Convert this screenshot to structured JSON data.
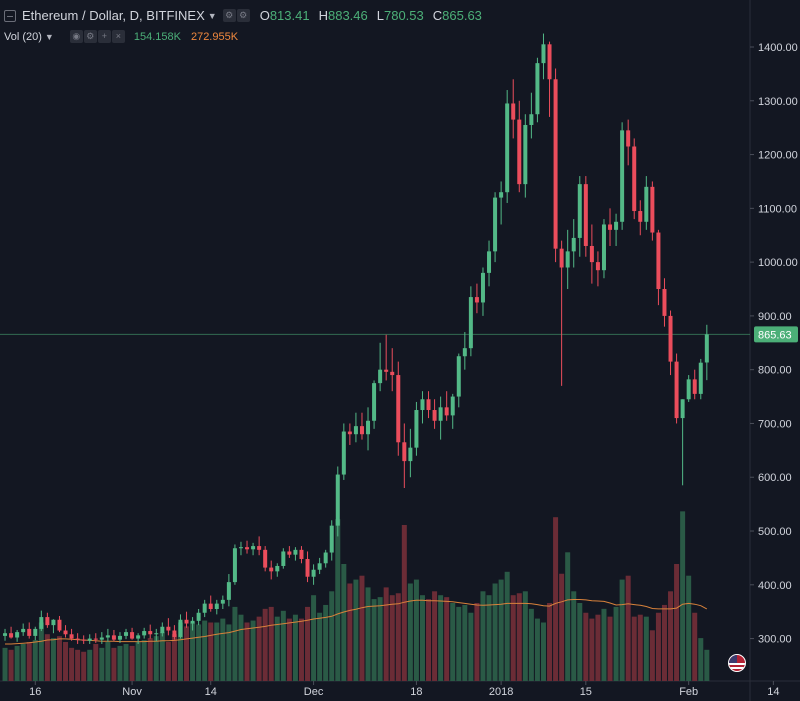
{
  "header": {
    "symbol": "Ethereum / Dollar, D, BITFINEX",
    "open_label": "O",
    "open": "813.41",
    "high_label": "H",
    "high": "883.46",
    "low_label": "L",
    "low": "780.53",
    "close_label": "C",
    "close": "865.63",
    "volume_label": "Vol (20)",
    "volume_value": "154.158K",
    "volume_ma": "272.955K"
  },
  "colors": {
    "background": "#131722",
    "up": "#53b987",
    "down": "#eb4d5c",
    "volume_up": "#2a5a46",
    "volume_down": "#6b2c36",
    "volume_ma": "#d9823b",
    "last_price_line": "#4caf78",
    "axis_text": "#d1d4dc",
    "grid": "#1f2430"
  },
  "icons": [
    "minimize-icon",
    "dropdown-caret-icon",
    "settings-icon",
    "eye-icon",
    "add-icon",
    "close-icon",
    "us-flag-icon"
  ],
  "chart_data": {
    "type": "candlestick",
    "title": "Ethereum / Dollar, D, BITFINEX",
    "ylim": [
      250,
      1440
    ],
    "y_ticks": [
      300,
      400,
      500,
      600,
      700,
      800,
      900,
      1000,
      1100,
      1200,
      1300,
      1400
    ],
    "x_labels": [
      {
        "label": "16",
        "index": 5
      },
      {
        "label": "Nov",
        "index": 21
      },
      {
        "label": "14",
        "index": 34
      },
      {
        "label": "Dec",
        "index": 51
      },
      {
        "label": "18",
        "index": 68
      },
      {
        "label": "2018",
        "index": 82
      },
      {
        "label": "15",
        "index": 96
      },
      {
        "label": "Feb",
        "index": 113
      },
      {
        "label": "14",
        "index": 127
      }
    ],
    "last_price": 865.63,
    "grid": false,
    "volume": {
      "label": "Vol (20)",
      "ma_period": 20
    },
    "candles": [
      {
        "o": 305,
        "h": 318,
        "l": 296,
        "c": 310
      },
      {
        "o": 310,
        "h": 322,
        "l": 300,
        "c": 302
      },
      {
        "o": 302,
        "h": 316,
        "l": 294,
        "c": 312
      },
      {
        "o": 312,
        "h": 328,
        "l": 305,
        "c": 318
      },
      {
        "o": 318,
        "h": 330,
        "l": 300,
        "c": 305
      },
      {
        "o": 305,
        "h": 322,
        "l": 297,
        "c": 318
      },
      {
        "o": 318,
        "h": 352,
        "l": 314,
        "c": 340
      },
      {
        "o": 340,
        "h": 348,
        "l": 320,
        "c": 325
      },
      {
        "o": 325,
        "h": 336,
        "l": 310,
        "c": 335
      },
      {
        "o": 335,
        "h": 342,
        "l": 312,
        "c": 315
      },
      {
        "o": 315,
        "h": 325,
        "l": 302,
        "c": 308
      },
      {
        "o": 308,
        "h": 318,
        "l": 296,
        "c": 300
      },
      {
        "o": 300,
        "h": 310,
        "l": 290,
        "c": 298
      },
      {
        "o": 298,
        "h": 306,
        "l": 290,
        "c": 296
      },
      {
        "o": 296,
        "h": 308,
        "l": 290,
        "c": 300
      },
      {
        "o": 300,
        "h": 310,
        "l": 292,
        "c": 298
      },
      {
        "o": 298,
        "h": 312,
        "l": 290,
        "c": 302
      },
      {
        "o": 302,
        "h": 318,
        "l": 294,
        "c": 306
      },
      {
        "o": 306,
        "h": 316,
        "l": 295,
        "c": 298
      },
      {
        "o": 298,
        "h": 312,
        "l": 292,
        "c": 305
      },
      {
        "o": 305,
        "h": 318,
        "l": 299,
        "c": 312
      },
      {
        "o": 312,
        "h": 320,
        "l": 298,
        "c": 300
      },
      {
        "o": 300,
        "h": 310,
        "l": 290,
        "c": 306
      },
      {
        "o": 306,
        "h": 320,
        "l": 300,
        "c": 314
      },
      {
        "o": 314,
        "h": 326,
        "l": 300,
        "c": 308
      },
      {
        "o": 308,
        "h": 318,
        "l": 295,
        "c": 310
      },
      {
        "o": 310,
        "h": 330,
        "l": 304,
        "c": 322
      },
      {
        "o": 322,
        "h": 338,
        "l": 306,
        "c": 315
      },
      {
        "o": 315,
        "h": 325,
        "l": 298,
        "c": 303
      },
      {
        "o": 303,
        "h": 345,
        "l": 300,
        "c": 335
      },
      {
        "o": 335,
        "h": 350,
        "l": 320,
        "c": 328
      },
      {
        "o": 328,
        "h": 340,
        "l": 315,
        "c": 333
      },
      {
        "o": 333,
        "h": 355,
        "l": 325,
        "c": 348
      },
      {
        "o": 348,
        "h": 372,
        "l": 340,
        "c": 365
      },
      {
        "o": 365,
        "h": 380,
        "l": 350,
        "c": 355
      },
      {
        "o": 355,
        "h": 372,
        "l": 345,
        "c": 365
      },
      {
        "o": 365,
        "h": 380,
        "l": 355,
        "c": 372
      },
      {
        "o": 372,
        "h": 420,
        "l": 360,
        "c": 405
      },
      {
        "o": 405,
        "h": 475,
        "l": 400,
        "c": 468
      },
      {
        "o": 468,
        "h": 480,
        "l": 455,
        "c": 470
      },
      {
        "o": 470,
        "h": 482,
        "l": 458,
        "c": 466
      },
      {
        "o": 466,
        "h": 478,
        "l": 455,
        "c": 472
      },
      {
        "o": 472,
        "h": 490,
        "l": 455,
        "c": 465
      },
      {
        "o": 465,
        "h": 472,
        "l": 425,
        "c": 432
      },
      {
        "o": 432,
        "h": 445,
        "l": 410,
        "c": 425
      },
      {
        "o": 425,
        "h": 440,
        "l": 415,
        "c": 435
      },
      {
        "o": 435,
        "h": 468,
        "l": 430,
        "c": 462
      },
      {
        "o": 462,
        "h": 472,
        "l": 450,
        "c": 456
      },
      {
        "o": 456,
        "h": 470,
        "l": 445,
        "c": 465
      },
      {
        "o": 465,
        "h": 472,
        "l": 440,
        "c": 448
      },
      {
        "o": 448,
        "h": 462,
        "l": 405,
        "c": 415
      },
      {
        "o": 415,
        "h": 438,
        "l": 400,
        "c": 428
      },
      {
        "o": 428,
        "h": 450,
        "l": 420,
        "c": 440
      },
      {
        "o": 440,
        "h": 465,
        "l": 432,
        "c": 460
      },
      {
        "o": 460,
        "h": 520,
        "l": 445,
        "c": 510
      },
      {
        "o": 510,
        "h": 620,
        "l": 490,
        "c": 605
      },
      {
        "o": 605,
        "h": 700,
        "l": 595,
        "c": 685
      },
      {
        "o": 685,
        "h": 700,
        "l": 660,
        "c": 680
      },
      {
        "o": 680,
        "h": 720,
        "l": 665,
        "c": 695
      },
      {
        "o": 695,
        "h": 720,
        "l": 670,
        "c": 680
      },
      {
        "o": 680,
        "h": 730,
        "l": 650,
        "c": 705
      },
      {
        "o": 705,
        "h": 780,
        "l": 690,
        "c": 775
      },
      {
        "o": 775,
        "h": 850,
        "l": 760,
        "c": 800
      },
      {
        "o": 800,
        "h": 865,
        "l": 780,
        "c": 796
      },
      {
        "o": 796,
        "h": 840,
        "l": 760,
        "c": 790
      },
      {
        "o": 790,
        "h": 815,
        "l": 640,
        "c": 665
      },
      {
        "o": 665,
        "h": 700,
        "l": 580,
        "c": 630
      },
      {
        "o": 630,
        "h": 690,
        "l": 600,
        "c": 655
      },
      {
        "o": 655,
        "h": 740,
        "l": 640,
        "c": 725
      },
      {
        "o": 725,
        "h": 760,
        "l": 700,
        "c": 745
      },
      {
        "o": 745,
        "h": 760,
        "l": 710,
        "c": 725
      },
      {
        "o": 725,
        "h": 745,
        "l": 690,
        "c": 705
      },
      {
        "o": 705,
        "h": 750,
        "l": 670,
        "c": 730
      },
      {
        "o": 730,
        "h": 760,
        "l": 705,
        "c": 715
      },
      {
        "o": 715,
        "h": 755,
        "l": 690,
        "c": 750
      },
      {
        "o": 750,
        "h": 830,
        "l": 730,
        "c": 825
      },
      {
        "o": 825,
        "h": 870,
        "l": 800,
        "c": 840
      },
      {
        "o": 840,
        "h": 955,
        "l": 825,
        "c": 935
      },
      {
        "o": 935,
        "h": 960,
        "l": 905,
        "c": 925
      },
      {
        "o": 925,
        "h": 990,
        "l": 900,
        "c": 980
      },
      {
        "o": 980,
        "h": 1040,
        "l": 955,
        "c": 1020
      },
      {
        "o": 1020,
        "h": 1130,
        "l": 1000,
        "c": 1120
      },
      {
        "o": 1120,
        "h": 1150,
        "l": 1070,
        "c": 1130
      },
      {
        "o": 1130,
        "h": 1320,
        "l": 1110,
        "c": 1295
      },
      {
        "o": 1295,
        "h": 1340,
        "l": 1230,
        "c": 1265
      },
      {
        "o": 1265,
        "h": 1300,
        "l": 1130,
        "c": 1145
      },
      {
        "o": 1145,
        "h": 1275,
        "l": 1120,
        "c": 1255
      },
      {
        "o": 1255,
        "h": 1315,
        "l": 1230,
        "c": 1275
      },
      {
        "o": 1275,
        "h": 1380,
        "l": 1260,
        "c": 1370
      },
      {
        "o": 1370,
        "h": 1425,
        "l": 1340,
        "c": 1405
      },
      {
        "o": 1405,
        "h": 1410,
        "l": 1270,
        "c": 1340
      },
      {
        "o": 1340,
        "h": 1360,
        "l": 1000,
        "c": 1025
      },
      {
        "o": 1025,
        "h": 1040,
        "l": 770,
        "c": 990
      },
      {
        "o": 990,
        "h": 1060,
        "l": 950,
        "c": 1020
      },
      {
        "o": 1020,
        "h": 1080,
        "l": 990,
        "c": 1045
      },
      {
        "o": 1045,
        "h": 1160,
        "l": 1010,
        "c": 1145
      },
      {
        "o": 1145,
        "h": 1160,
        "l": 1010,
        "c": 1030
      },
      {
        "o": 1030,
        "h": 1070,
        "l": 960,
        "c": 1000
      },
      {
        "o": 1000,
        "h": 1020,
        "l": 955,
        "c": 985
      },
      {
        "o": 985,
        "h": 1080,
        "l": 970,
        "c": 1070
      },
      {
        "o": 1070,
        "h": 1100,
        "l": 1030,
        "c": 1060
      },
      {
        "o": 1060,
        "h": 1090,
        "l": 1030,
        "c": 1075
      },
      {
        "o": 1075,
        "h": 1260,
        "l": 1060,
        "c": 1245
      },
      {
        "o": 1245,
        "h": 1265,
        "l": 1180,
        "c": 1215
      },
      {
        "o": 1215,
        "h": 1230,
        "l": 1080,
        "c": 1095
      },
      {
        "o": 1095,
        "h": 1115,
        "l": 1050,
        "c": 1075
      },
      {
        "o": 1075,
        "h": 1160,
        "l": 1060,
        "c": 1140
      },
      {
        "o": 1140,
        "h": 1150,
        "l": 1040,
        "c": 1055
      },
      {
        "o": 1055,
        "h": 1060,
        "l": 920,
        "c": 950
      },
      {
        "o": 950,
        "h": 970,
        "l": 880,
        "c": 900
      },
      {
        "o": 900,
        "h": 910,
        "l": 790,
        "c": 815
      },
      {
        "o": 815,
        "h": 830,
        "l": 700,
        "c": 710
      },
      {
        "o": 710,
        "h": 745,
        "l": 585,
        "c": 745
      },
      {
        "o": 745,
        "h": 790,
        "l": 740,
        "c": 782
      },
      {
        "o": 782,
        "h": 800,
        "l": 745,
        "c": 755
      },
      {
        "o": 755,
        "h": 820,
        "l": 745,
        "c": 813
      },
      {
        "o": 813.41,
        "h": 883.46,
        "l": 780.53,
        "c": 865.63
      }
    ],
    "volumes": [
      85,
      80,
      90,
      95,
      100,
      105,
      150,
      120,
      110,
      115,
      100,
      85,
      80,
      75,
      80,
      95,
      85,
      100,
      85,
      90,
      95,
      90,
      100,
      105,
      110,
      115,
      125,
      100,
      120,
      150,
      140,
      150,
      145,
      155,
      150,
      150,
      160,
      145,
      190,
      170,
      150,
      155,
      165,
      185,
      190,
      165,
      180,
      160,
      170,
      160,
      190,
      220,
      175,
      195,
      230,
      415,
      300,
      250,
      260,
      270,
      240,
      210,
      215,
      240,
      220,
      225,
      400,
      250,
      260,
      220,
      210,
      230,
      220,
      215,
      200,
      190,
      195,
      175,
      200,
      230,
      220,
      250,
      260,
      280,
      220,
      225,
      230,
      185,
      160,
      150,
      200,
      420,
      275,
      330,
      230,
      200,
      175,
      160,
      170,
      185,
      165,
      190,
      260,
      270,
      165,
      170,
      165,
      130,
      175,
      195,
      230,
      300,
      435,
      270,
      175,
      110,
      80
    ],
    "volume_ma_values": [
      95,
      95,
      96,
      97,
      98,
      100,
      102,
      105,
      106,
      108,
      108,
      107,
      106,
      105,
      104,
      103,
      102,
      102,
      102,
      101,
      101,
      101,
      101,
      101,
      102,
      102,
      103,
      103,
      104,
      106,
      108,
      110,
      112,
      114,
      117,
      120,
      122,
      124,
      128,
      132,
      134,
      136,
      138,
      140,
      143,
      145,
      147,
      149,
      151,
      153,
      156,
      159,
      161,
      163,
      166,
      172,
      177,
      181,
      184,
      188,
      191,
      192,
      193,
      195,
      197,
      198,
      202,
      205,
      207,
      207,
      206,
      206,
      205,
      204,
      203,
      201,
      199,
      197,
      195,
      194,
      195,
      196,
      197,
      199,
      199,
      199,
      199,
      198,
      196,
      193,
      192,
      199,
      203,
      208,
      209,
      209,
      208,
      206,
      205,
      204,
      200,
      195,
      196,
      198,
      196,
      194,
      191,
      186,
      185,
      185,
      185,
      187,
      197,
      199,
      197,
      193,
      185
    ]
  }
}
